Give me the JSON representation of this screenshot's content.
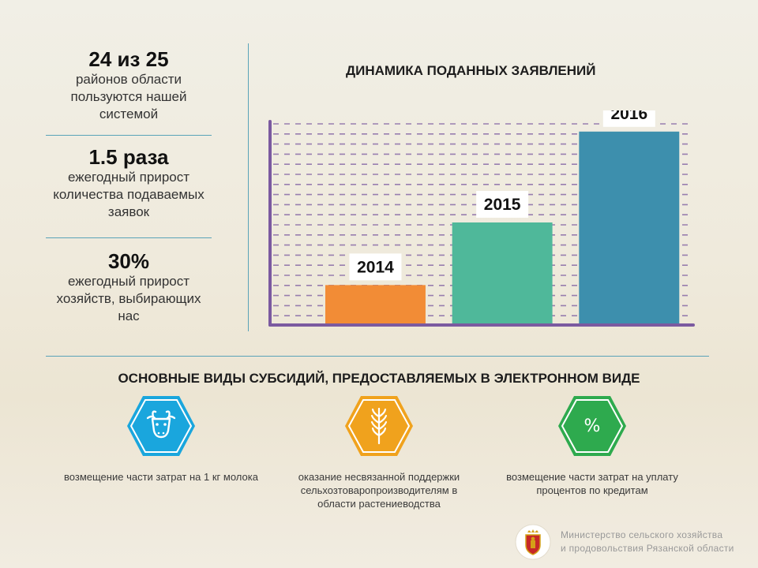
{
  "stats": [
    {
      "value": "24 из 25",
      "text": "районов области пользуются нашей системой"
    },
    {
      "value": "1.5 раза",
      "text": "ежегодный прирост количества подаваемых заявок"
    },
    {
      "value": "30%",
      "text": "ежегодный прирост хозяйств, выбирающих нас"
    }
  ],
  "chart_data": {
    "type": "bar",
    "title": "ДИНАМИКА ПОДАННЫХ ЗАЯВЛЕНИЙ",
    "categories": [
      "2014",
      "2015",
      "2016"
    ],
    "values": [
      19,
      50,
      95
    ],
    "ylim": [
      0,
      100
    ],
    "colors": [
      "#f28c36",
      "#4fb89a",
      "#3d8fad"
    ],
    "axis_color": "#7b5aa0",
    "grid": true,
    "grid_color": "#7b5aa0"
  },
  "subsidies": {
    "title": "ОСНОВНЫЕ ВИДЫ СУБСИДИЙ, ПРЕДОСТАВЛЯЕМЫХ В ЭЛЕКТРОННОМ ВИДЕ",
    "items": [
      {
        "icon": "cow-icon",
        "color": "#1aa6dd",
        "caption": "возмещение части затрат на 1 кг молока"
      },
      {
        "icon": "wheat-icon",
        "color": "#f0a21d",
        "caption": "оказание несвязанной поддержки сельхозтоваропроизводителям в области растениеводства"
      },
      {
        "icon": "percent-icon",
        "color": "#2eaa4e",
        "caption": "возмещение части затрат на уплату процентов по кредитам",
        "symbol": "%"
      }
    ]
  },
  "footer": {
    "line1": "Министерство сельского хозяйства",
    "line2": "и продовольствия Рязанской области",
    "logo": "coat-of-arms-icon"
  }
}
